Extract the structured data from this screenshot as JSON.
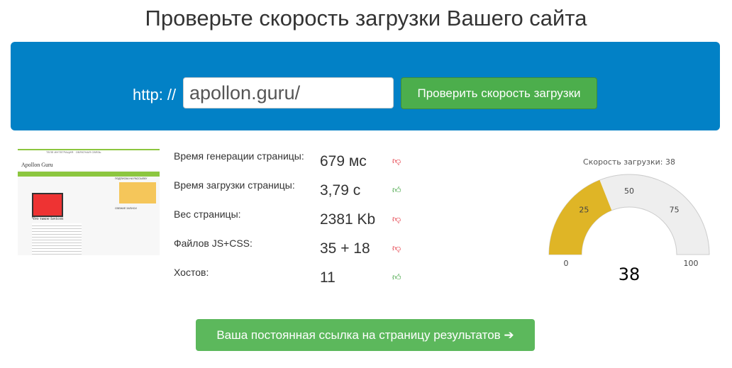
{
  "title": "Проверьте скорость загрузки Вашего сайта",
  "form": {
    "protocol": "http: //",
    "url": "apollon.guru/",
    "button": "Проверить скорость загрузки"
  },
  "thumbnail": {
    "site_name": "Apollon Guru",
    "nav": [
      "ТЕЛЕ ИНТЕГРАЦИЯ",
      "ОБРАТНАЯ СВЯЗЬ"
    ],
    "post_title": "Что такое favicon",
    "sidebar_title": "ПОДПИСКА НА РАССЫЛКУ",
    "sidebar_title2": "СВЕЖИЕ ЗАПИСИ"
  },
  "metrics": [
    {
      "label": "Время генерации страницы:",
      "value": "679 мс",
      "rating": "thumbs-down"
    },
    {
      "label": "Время загрузки страницы:",
      "value": "3,79 с",
      "rating": "thumbs-up"
    },
    {
      "label": "Вес страницы:",
      "value": "2381 Kb",
      "rating": "thumbs-down"
    },
    {
      "label": "Файлов JS+CSS:",
      "value": "35 + 18",
      "rating": "thumbs-down"
    },
    {
      "label": "Хостов:",
      "value": "11",
      "rating": "thumbs-up"
    }
  ],
  "gauge": {
    "title": "Скорость загрузки: 38",
    "value": 38,
    "value_label": "38",
    "min": 0,
    "max": 100,
    "ticks": [
      "0",
      "25",
      "50",
      "75",
      "100"
    ],
    "fill_color": "#dfb526",
    "track_color": "#eeeeee"
  },
  "permalink_button": "Ваша постоянная ссылка на страницу результатов ➔"
}
